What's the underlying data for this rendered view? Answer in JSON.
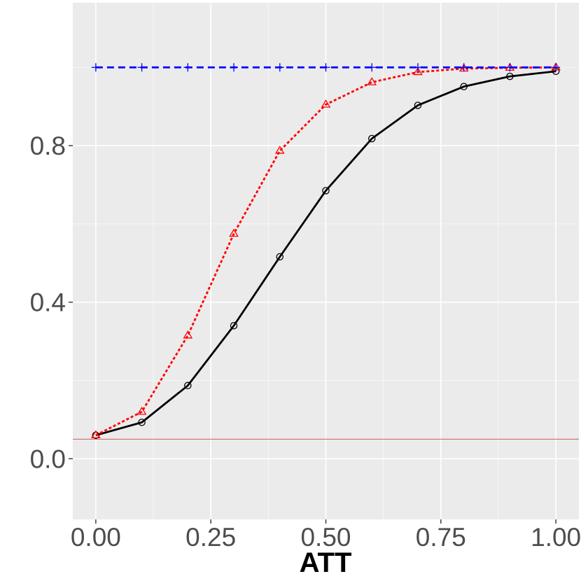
{
  "chart_data": {
    "type": "line",
    "title": "",
    "xlabel": "ATT",
    "ylabel": "",
    "xlim": [
      -0.05,
      1.05
    ],
    "ylim": [
      -0.155,
      1.165
    ],
    "x_ticks": [
      0.0,
      0.25,
      0.5,
      0.75,
      1.0
    ],
    "x_tick_labels": [
      "0.00",
      "0.25",
      "0.50",
      "0.75",
      "1.00"
    ],
    "y_ticks": [
      0.0,
      0.4,
      0.8
    ],
    "y_tick_labels": [
      "0.0",
      "0.4",
      "0.8"
    ],
    "grid": true,
    "reference_line": {
      "y": 0.05,
      "color": "#cd5c5c"
    },
    "x": [
      0.0,
      0.1,
      0.2,
      0.3,
      0.4,
      0.5,
      0.6,
      0.7,
      0.8,
      0.9,
      1.0
    ],
    "series": [
      {
        "values": [
          0.06,
          0.093,
          0.187,
          0.34,
          0.516,
          0.685,
          0.818,
          0.903,
          0.951,
          0.977,
          0.99
        ],
        "color": "#000000",
        "line": "solid",
        "marker": "circle"
      },
      {
        "values": [
          0.06,
          0.12,
          0.315,
          0.575,
          0.787,
          0.905,
          0.962,
          0.988,
          0.997,
          0.999,
          1.0
        ],
        "color": "#ff0000",
        "line": "dotted",
        "marker": "triangle"
      },
      {
        "values": [
          1.0,
          1.0,
          1.0,
          1.0,
          1.0,
          1.0,
          1.0,
          1.0,
          1.0,
          1.0,
          1.0
        ],
        "color": "#0000ff",
        "line": "dashed",
        "marker": "plus"
      }
    ]
  }
}
